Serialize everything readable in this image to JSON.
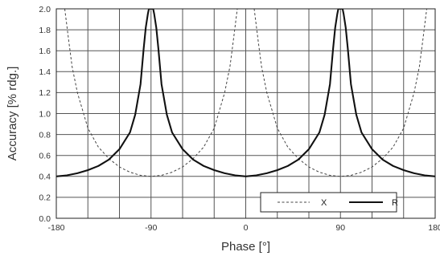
{
  "chart_data": {
    "type": "line",
    "xlabel": "Phase [°]",
    "ylabel": "Accuracy [% rdg.]",
    "xlim": [
      -180,
      180
    ],
    "ylim": [
      0,
      2.0
    ],
    "xticks": [
      -180,
      -150,
      -120,
      -90,
      -60,
      -30,
      0,
      30,
      60,
      90,
      120,
      150,
      180
    ],
    "xtick_labels": [
      "-180",
      "-90",
      "0",
      "90",
      "180"
    ],
    "xtick_label_values": [
      -180,
      -90,
      0,
      90,
      180
    ],
    "yticks": [
      0,
      0.2,
      0.4,
      0.6,
      0.8,
      1.0,
      1.2,
      1.4,
      1.6,
      1.8,
      2.0
    ],
    "ytick_labels": [
      "0.0",
      "0.2",
      "0.4",
      "0.6",
      "0.8",
      "1.0",
      "1.2",
      "1.4",
      "1.6",
      "1.8",
      "2.0"
    ],
    "grid": true,
    "legend_position": "bottom-right",
    "series": [
      {
        "name": "X",
        "style": "dashed",
        "color": "#444444",
        "x": [
          -172,
          -168,
          -165,
          -160,
          -150,
          -140,
          -130,
          -120,
          -110,
          -100,
          -90,
          -80,
          -70,
          -60,
          -50,
          -40,
          -30,
          -20,
          -15,
          -12,
          -8,
          8,
          12,
          15,
          20,
          30,
          40,
          50,
          60,
          70,
          80,
          90,
          100,
          110,
          120,
          130,
          140,
          150,
          160,
          165,
          168,
          172
        ],
        "y": [
          2.0,
          1.68,
          1.45,
          1.2,
          0.86,
          0.68,
          0.57,
          0.49,
          0.44,
          0.41,
          0.4,
          0.41,
          0.44,
          0.49,
          0.57,
          0.68,
          0.86,
          1.2,
          1.45,
          1.68,
          2.0,
          2.0,
          1.68,
          1.45,
          1.2,
          0.86,
          0.68,
          0.57,
          0.49,
          0.44,
          0.41,
          0.4,
          0.41,
          0.44,
          0.49,
          0.57,
          0.68,
          0.86,
          1.2,
          1.45,
          1.68,
          2.0
        ]
      },
      {
        "name": "R",
        "style": "solid",
        "color": "#111111",
        "x": [
          -180,
          -170,
          -160,
          -150,
          -140,
          -130,
          -120,
          -110,
          -105,
          -100,
          -97,
          -95,
          -93,
          -92,
          -88,
          -87,
          -85,
          -83,
          -80,
          -75,
          -70,
          -60,
          -50,
          -40,
          -30,
          -20,
          -10,
          0,
          10,
          20,
          30,
          40,
          50,
          60,
          70,
          75,
          80,
          83,
          85,
          87,
          88,
          92,
          93,
          95,
          97,
          100,
          105,
          110,
          120,
          130,
          140,
          150,
          160,
          170,
          180
        ],
        "y": [
          0.4,
          0.41,
          0.43,
          0.46,
          0.5,
          0.56,
          0.66,
          0.82,
          0.99,
          1.28,
          1.62,
          1.82,
          1.95,
          2.0,
          2.0,
          1.95,
          1.82,
          1.62,
          1.28,
          0.99,
          0.82,
          0.66,
          0.56,
          0.5,
          0.46,
          0.43,
          0.41,
          0.4,
          0.41,
          0.43,
          0.46,
          0.5,
          0.56,
          0.66,
          0.82,
          0.99,
          1.28,
          1.62,
          1.82,
          1.95,
          2.0,
          2.0,
          1.95,
          1.82,
          1.62,
          1.28,
          0.99,
          0.82,
          0.66,
          0.56,
          0.5,
          0.46,
          0.43,
          0.41,
          0.4
        ]
      }
    ],
    "legend": [
      {
        "label": "X",
        "style": "dashed"
      },
      {
        "label": "R",
        "style": "solid"
      }
    ]
  }
}
